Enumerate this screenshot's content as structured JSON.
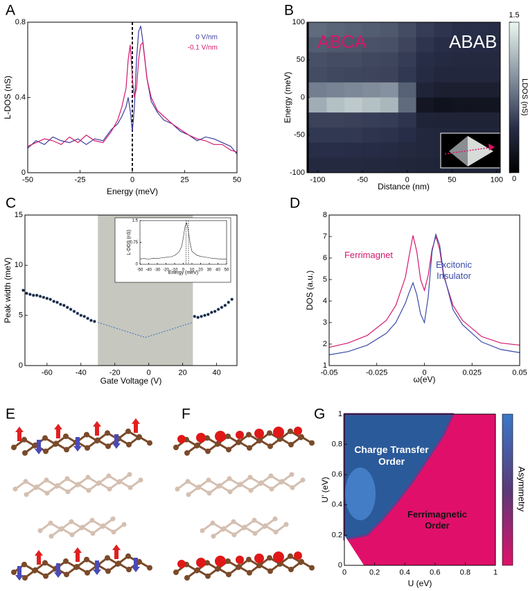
{
  "chart_data": [
    {
      "type": "line",
      "panel_label": "A",
      "xlabel": "Energy (meV)",
      "ylabel": "L-DOS (nS)",
      "x": [
        -50,
        -46,
        -42,
        -38,
        -34,
        -30,
        -26,
        -22,
        -18,
        -14,
        -10,
        -7,
        -5,
        -3,
        -2,
        -1,
        0,
        1,
        2,
        3,
        4,
        5,
        6,
        7,
        9,
        12,
        15,
        19,
        23,
        27,
        31,
        35,
        39,
        43,
        47,
        50
      ],
      "series": [
        {
          "name": "0 V/nm",
          "color": "#3a3c9c",
          "values": [
            0.13,
            0.17,
            0.15,
            0.19,
            0.17,
            0.16,
            0.18,
            0.15,
            0.18,
            0.17,
            0.23,
            0.26,
            0.3,
            0.35,
            0.4,
            0.33,
            0.22,
            0.35,
            0.6,
            0.75,
            0.78,
            0.7,
            0.6,
            0.5,
            0.38,
            0.32,
            0.28,
            0.26,
            0.22,
            0.2,
            0.17,
            0.19,
            0.18,
            0.16,
            0.14,
            0.1
          ]
        },
        {
          "name": "-0.1 V/nm",
          "color": "#d4186c",
          "values": [
            0.14,
            0.16,
            0.18,
            0.17,
            0.15,
            0.19,
            0.16,
            0.2,
            0.17,
            0.16,
            0.22,
            0.28,
            0.35,
            0.45,
            0.6,
            0.68,
            0.5,
            0.4,
            0.45,
            0.6,
            0.68,
            0.69,
            0.6,
            0.5,
            0.4,
            0.33,
            0.3,
            0.26,
            0.23,
            0.2,
            0.18,
            0.17,
            0.15,
            0.15,
            0.12,
            0.11
          ]
        }
      ],
      "xlim": [
        -50,
        50
      ],
      "xticks": [
        -50,
        -25,
        0,
        25,
        50
      ],
      "ylim": [
        0,
        0.8
      ],
      "yticks": [
        0,
        0.4,
        0.8
      ],
      "vlines": [
        0
      ],
      "legend": "top right"
    },
    {
      "type": "heatmap",
      "panel_label": "B",
      "xlabel": "Distance (nm)",
      "ylabel": "Energy (meV)",
      "colorbar_label": "LDOS (nS)",
      "annotations": [
        {
          "text": "ABCA",
          "color": "#d4186c"
        },
        {
          "text": "ABAB",
          "color": "#ffffff"
        }
      ],
      "x": [
        -100,
        -80,
        -60,
        -40,
        -20,
        0,
        20,
        40,
        60,
        80,
        100
      ],
      "y": [
        90,
        70,
        50,
        30,
        10,
        -10,
        -30,
        -50,
        -70,
        -90
      ],
      "z": [
        [
          0.75,
          0.72,
          0.7,
          0.68,
          0.66,
          0.6,
          0.52,
          0.48,
          0.45,
          0.45,
          0.44
        ],
        [
          0.68,
          0.66,
          0.65,
          0.63,
          0.62,
          0.56,
          0.48,
          0.44,
          0.42,
          0.42,
          0.42
        ],
        [
          0.62,
          0.6,
          0.6,
          0.58,
          0.57,
          0.52,
          0.44,
          0.41,
          0.4,
          0.4,
          0.4
        ],
        [
          0.6,
          0.58,
          0.57,
          0.56,
          0.55,
          0.5,
          0.42,
          0.38,
          0.38,
          0.38,
          0.38
        ],
        [
          0.85,
          0.88,
          0.9,
          0.92,
          0.95,
          0.7,
          0.35,
          0.3,
          0.3,
          0.3,
          0.3
        ],
        [
          1.1,
          1.2,
          1.25,
          1.2,
          1.15,
          0.75,
          0.22,
          0.18,
          0.2,
          0.2,
          0.2
        ],
        [
          0.55,
          0.55,
          0.54,
          0.53,
          0.52,
          0.48,
          0.35,
          0.34,
          0.34,
          0.34,
          0.34
        ],
        [
          0.5,
          0.5,
          0.5,
          0.48,
          0.47,
          0.44,
          0.38,
          0.37,
          0.36,
          0.36,
          0.36
        ],
        [
          0.45,
          0.45,
          0.44,
          0.43,
          0.42,
          0.4,
          0.38,
          0.37,
          0.36,
          0.36,
          0.36
        ],
        [
          0.4,
          0.4,
          0.4,
          0.39,
          0.38,
          0.37,
          0.36,
          0.35,
          0.35,
          0.35,
          0.35
        ]
      ],
      "xlim": [
        -112,
        104
      ],
      "xticks": [
        -100,
        -50,
        0,
        50,
        100
      ],
      "ylim": [
        -100,
        100
      ],
      "yticks": [
        -100,
        -50,
        0,
        50,
        100
      ],
      "zlim": [
        0,
        1.5
      ],
      "zticks": [
        0,
        1.5
      ]
    },
    {
      "type": "scatter",
      "panel_label": "C",
      "xlabel": "Gate Voltage (V)",
      "ylabel": "Peak width (meV)",
      "shaded_region": [
        -30,
        26
      ],
      "shade_color": "#c6c7be",
      "series": [
        {
          "color": "#1c1c2c",
          "x": [
            -74,
            -72,
            -70,
            -68,
            -66,
            -64,
            -62,
            -60,
            -58,
            -56,
            -54,
            -52,
            -50,
            -48,
            -46,
            -44,
            -42,
            -40,
            -38,
            -36,
            -34,
            -32,
            27,
            29,
            31,
            33,
            35,
            37,
            39,
            41,
            43,
            45,
            47,
            49
          ],
          "values": [
            7.5,
            7.2,
            7.1,
            7.0,
            7.0,
            6.9,
            6.8,
            6.7,
            6.6,
            6.4,
            6.3,
            6.1,
            6.0,
            5.8,
            5.6,
            5.4,
            5.2,
            5.0,
            4.9,
            4.7,
            4.5,
            4.4,
            4.9,
            4.8,
            4.9,
            5.0,
            5.1,
            5.3,
            5.4,
            5.6,
            5.8,
            6.0,
            6.3,
            6.6
          ]
        },
        {
          "color": "#3a6fc0",
          "style": "dashed",
          "x": [
            -30,
            -2,
            26
          ],
          "values": [
            4.3,
            2.8,
            4.3
          ]
        }
      ],
      "xlim": [
        -73,
        52
      ],
      "xticks": [
        -60,
        -40,
        -20,
        0,
        20,
        40
      ],
      "ylim": [
        0,
        15
      ],
      "yticks": [
        0,
        5,
        10,
        15
      ]
    },
    {
      "type": "line",
      "xlabel": "Energy (meV)",
      "ylabel": "L-DOS (nS)",
      "x": [
        -50,
        -45,
        -40,
        -35,
        -30,
        -25,
        -20,
        -15,
        -10,
        -5,
        -2,
        0,
        2,
        4,
        6,
        8,
        10,
        15,
        20,
        25,
        30,
        35,
        40,
        45,
        50
      ],
      "series": [
        {
          "color": "#222222",
          "values": [
            0.18,
            0.2,
            0.17,
            0.21,
            0.2,
            0.22,
            0.24,
            0.25,
            0.3,
            0.42,
            0.6,
            0.9,
            1.3,
            1.42,
            1.1,
            0.7,
            0.45,
            0.32,
            0.27,
            0.25,
            0.22,
            0.2,
            0.19,
            0.18,
            0.17
          ]
        }
      ],
      "xlim": [
        -50,
        50
      ],
      "xticks": [
        -50,
        -40,
        -30,
        -20,
        -10,
        0,
        10,
        20,
        30,
        40,
        50
      ],
      "ylim": [
        0,
        1.5
      ],
      "yticks": [
        0,
        0.75,
        1.5
      ],
      "vlines": [
        3,
        6
      ]
    },
    {
      "type": "line",
      "panel_label": "D",
      "xlabel": "ω(eV)",
      "ylabel": "DOS (a.u.)",
      "x": [
        -0.05,
        -0.04,
        -0.03,
        -0.02,
        -0.015,
        -0.01,
        -0.008,
        -0.006,
        -0.004,
        -0.002,
        0,
        0.002,
        0.004,
        0.006,
        0.008,
        0.01,
        0.015,
        0.02,
        0.03,
        0.04,
        0.05
      ],
      "series": [
        {
          "name": "Ferrimagnet",
          "color": "#d4186c",
          "values": [
            1.85,
            2.05,
            2.4,
            3.1,
            3.8,
            5.1,
            6.1,
            7.05,
            6.3,
            5.0,
            4.5,
            5.2,
            6.4,
            7.0,
            6.4,
            5.2,
            3.8,
            3.1,
            2.35,
            2.05,
            1.95
          ]
        },
        {
          "name": "Excitonic Insulator",
          "color": "#3a4aa8",
          "values": [
            1.5,
            1.65,
            1.95,
            2.5,
            3.0,
            3.9,
            4.4,
            4.85,
            4.3,
            3.4,
            3.0,
            4.2,
            6.3,
            7.1,
            6.6,
            5.3,
            3.6,
            2.9,
            2.1,
            1.75,
            1.6
          ]
        }
      ],
      "xlim": [
        -0.05,
        0.05
      ],
      "xticks": [
        -0.05,
        -0.025,
        0,
        0.025,
        0.05
      ],
      "ylim": [
        1,
        8
      ],
      "yticks": [
        1,
        2,
        3,
        4,
        5,
        6,
        7,
        8
      ]
    },
    {
      "type": "phase",
      "panel_label": "G",
      "xlabel": "U (eV)",
      "ylabel": "U' (eV)",
      "colorbar_label": "Asymmetry",
      "regions": [
        {
          "label": "Charge Transfer Order",
          "color": "#2b5a9a"
        },
        {
          "label": "Ferrimagnetic Order",
          "color": "#e0106a"
        }
      ],
      "boundary": {
        "x": [
          0,
          0.05,
          0.15,
          0.25,
          0.35,
          0.45,
          0.55,
          0.65,
          0.72
        ],
        "y": [
          0.17,
          0.18,
          0.2,
          0.3,
          0.42,
          0.55,
          0.7,
          0.85,
          1
        ]
      },
      "empty_region": {
        "x": [
          0,
          0,
          0.13
        ],
        "y": [
          0,
          0.2,
          0
        ]
      },
      "xlim": [
        0,
        1
      ],
      "xticks": [
        0,
        0.2,
        0.4,
        0.6,
        0.8,
        1
      ],
      "ylim": [
        0,
        1
      ],
      "yticks": [
        0,
        0.2,
        0.4,
        0.6,
        0.8,
        1
      ]
    }
  ],
  "diagrams": [
    {
      "panel_label": "E"
    },
    {
      "panel_label": "F"
    }
  ]
}
